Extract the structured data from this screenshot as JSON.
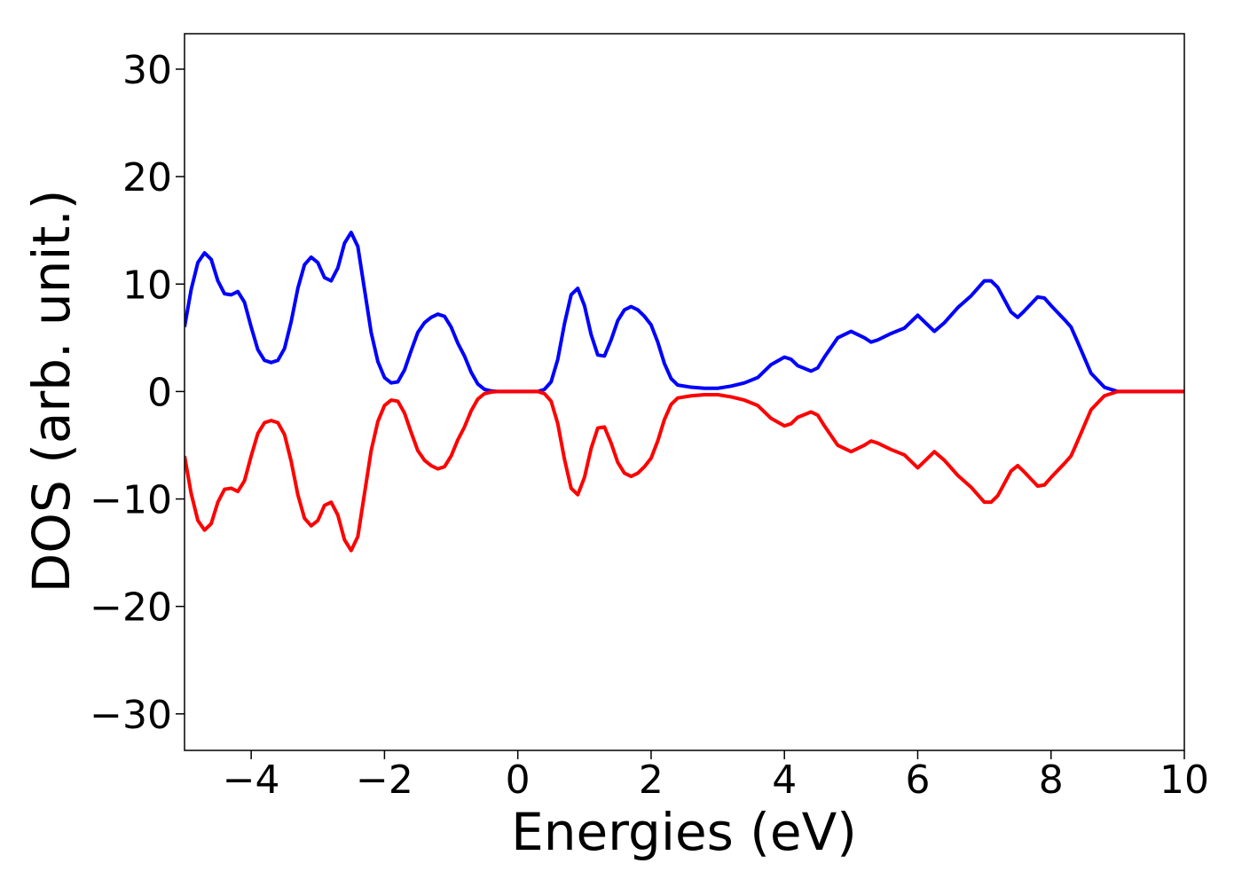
{
  "chart_data": {
    "type": "line",
    "x_label": "Energies (eV)",
    "y_label": "DOS (arb. unit.)",
    "xlim": [
      -5,
      10
    ],
    "ylim": [
      -33.4,
      33.3
    ],
    "xticks": [
      {
        "value": -4,
        "label": "−4"
      },
      {
        "value": -2,
        "label": "−2"
      },
      0,
      2,
      4,
      6,
      8,
      10
    ],
    "yticks": [
      {
        "value": -30,
        "label": "−30"
      },
      {
        "value": -20,
        "label": "−20"
      },
      {
        "value": -10,
        "label": "−10"
      },
      0,
      10,
      20,
      30
    ],
    "grid": false,
    "x": [
      -5,
      -4.9,
      -4.8,
      -4.7,
      -4.6,
      -4.5,
      -4.4,
      -4.3,
      -4.2,
      -4.1,
      -4.0,
      -3.9,
      -3.8,
      -3.7,
      -3.6,
      -3.5,
      -3.4,
      -3.3,
      -3.2,
      -3.1,
      -3.0,
      -2.9,
      -2.8,
      -2.7,
      -2.6,
      -2.5,
      -2.4,
      -2.3,
      -2.2,
      -2.1,
      -2.0,
      -1.9,
      -1.8,
      -1.7,
      -1.6,
      -1.5,
      -1.4,
      -1.3,
      -1.2,
      -1.1,
      -1.0,
      -0.9,
      -0.8,
      -0.7,
      -0.6,
      -0.5,
      -0.4,
      -0.3,
      0.3,
      0.4,
      0.5,
      0.6,
      0.7,
      0.8,
      0.9,
      1.0,
      1.1,
      1.2,
      1.3,
      1.4,
      1.5,
      1.6,
      1.7,
      1.8,
      1.9,
      2.0,
      2.1,
      2.2,
      2.3,
      2.4,
      2.6,
      2.8,
      3.0,
      3.2,
      3.4,
      3.6,
      3.8,
      4.0,
      4.1,
      4.2,
      4.4,
      4.5,
      4.6,
      4.8,
      5.0,
      5.2,
      5.3,
      5.4,
      5.6,
      5.8,
      6.0,
      6.1,
      6.25,
      6.4,
      6.6,
      6.8,
      7.0,
      7.1,
      7.2,
      7.4,
      7.5,
      7.6,
      7.8,
      7.9,
      8.0,
      8.2,
      8.3,
      8.4,
      8.6,
      8.8,
      9.0,
      10
    ],
    "series": [
      {
        "color": "#0000ff",
        "values": [
          6.0,
          9.5,
          12.0,
          12.9,
          12.3,
          10.3,
          9.1,
          9.0,
          9.3,
          8.3,
          6.0,
          3.9,
          2.9,
          2.7,
          2.9,
          4.0,
          6.5,
          9.6,
          11.8,
          12.5,
          12.0,
          10.6,
          10.3,
          11.5,
          13.8,
          14.8,
          13.5,
          9.5,
          5.5,
          2.8,
          1.3,
          0.8,
          0.9,
          2.0,
          3.8,
          5.5,
          6.4,
          6.9,
          7.2,
          7.0,
          6.0,
          4.5,
          3.3,
          1.8,
          0.7,
          0.2,
          0.05,
          0,
          0,
          0.2,
          0.9,
          3.0,
          6.3,
          9.0,
          9.6,
          8.0,
          5.3,
          3.4,
          3.3,
          4.8,
          6.6,
          7.6,
          7.9,
          7.6,
          7.0,
          6.2,
          4.6,
          2.6,
          1.2,
          0.6,
          0.4,
          0.3,
          0.3,
          0.5,
          0.8,
          1.3,
          2.5,
          3.2,
          3.0,
          2.4,
          1.9,
          2.2,
          3.2,
          5.0,
          5.6,
          5.0,
          4.6,
          4.8,
          5.4,
          5.9,
          7.1,
          6.5,
          5.6,
          6.4,
          7.8,
          8.9,
          10.3,
          10.3,
          9.7,
          7.4,
          6.9,
          7.5,
          8.8,
          8.7,
          8.0,
          6.7,
          6.0,
          4.6,
          1.7,
          0.4,
          0,
          0
        ]
      },
      {
        "color": "#ff0000",
        "values": [
          -6.0,
          -9.5,
          -12.0,
          -12.9,
          -12.3,
          -10.3,
          -9.1,
          -9.0,
          -9.3,
          -8.3,
          -6.0,
          -3.9,
          -2.9,
          -2.7,
          -2.9,
          -4.0,
          -6.5,
          -9.6,
          -11.8,
          -12.5,
          -12.0,
          -10.6,
          -10.3,
          -11.5,
          -13.8,
          -14.8,
          -13.5,
          -9.5,
          -5.5,
          -2.8,
          -1.3,
          -0.8,
          -0.9,
          -2.0,
          -3.8,
          -5.5,
          -6.4,
          -6.9,
          -7.2,
          -7.0,
          -6.0,
          -4.5,
          -3.3,
          -1.8,
          -0.7,
          -0.2,
          -0.05,
          0,
          0,
          -0.2,
          -0.9,
          -3.0,
          -6.3,
          -9.0,
          -9.6,
          -8.0,
          -5.3,
          -3.4,
          -3.3,
          -4.8,
          -6.6,
          -7.6,
          -7.9,
          -7.6,
          -7.0,
          -6.2,
          -4.6,
          -2.6,
          -1.2,
          -0.6,
          -0.4,
          -0.3,
          -0.3,
          -0.5,
          -0.8,
          -1.3,
          -2.5,
          -3.2,
          -3.0,
          -2.4,
          -1.9,
          -2.2,
          -3.2,
          -5.0,
          -5.6,
          -5.0,
          -4.6,
          -4.8,
          -5.4,
          -5.9,
          -7.1,
          -6.5,
          -5.6,
          -6.4,
          -7.8,
          -8.9,
          -10.3,
          -10.3,
          -9.7,
          -7.4,
          -6.9,
          -7.5,
          -8.8,
          -8.7,
          -8.0,
          -6.7,
          -6.0,
          -4.6,
          -1.7,
          -0.4,
          0,
          0
        ]
      }
    ]
  }
}
